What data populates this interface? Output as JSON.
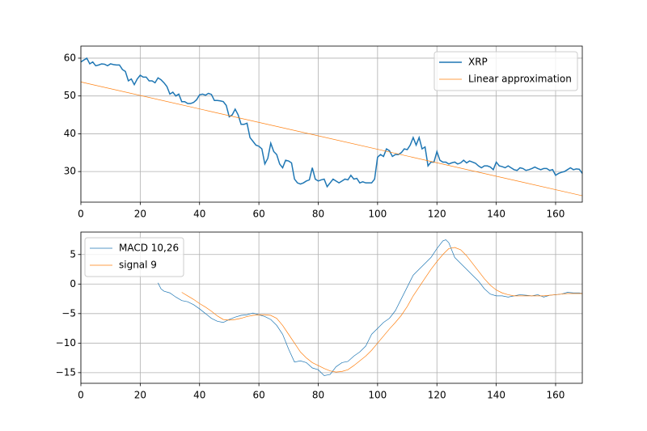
{
  "chart_data": [
    {
      "type": "line",
      "xlim": [
        0,
        169
      ],
      "ylim": [
        21.9,
        63.2
      ],
      "xticks": [
        0,
        20,
        40,
        60,
        80,
        100,
        120,
        140,
        160
      ],
      "yticks": [
        30,
        40,
        50,
        60
      ],
      "grid": true,
      "legend": "upper right",
      "series": [
        {
          "name": "XRP",
          "color": "#1f77b4",
          "width": 1.5,
          "x": [
            0,
            1,
            2,
            3,
            4,
            5,
            6,
            7,
            8,
            9,
            10,
            11,
            12,
            13,
            14,
            15,
            16,
            17,
            18,
            19,
            20,
            21,
            22,
            23,
            24,
            25,
            26,
            27,
            28,
            29,
            30,
            31,
            32,
            33,
            34,
            35,
            36,
            37,
            38,
            39,
            40,
            41,
            42,
            43,
            44,
            45,
            46,
            47,
            48,
            49,
            50,
            51,
            52,
            53,
            54,
            55,
            56,
            57,
            58,
            59,
            60,
            61,
            62,
            63,
            64,
            65,
            66,
            67,
            68,
            69,
            70,
            71,
            72,
            73,
            74,
            75,
            76,
            77,
            78,
            79,
            80,
            81,
            82,
            83,
            84,
            85,
            86,
            87,
            88,
            89,
            90,
            91,
            92,
            93,
            94,
            95,
            96,
            97,
            98,
            99,
            100,
            101,
            102,
            103,
            104,
            105,
            106,
            107,
            108,
            109,
            110,
            111,
            112,
            113,
            114,
            115,
            116,
            117,
            118,
            119,
            120,
            121,
            122,
            123,
            124,
            125,
            126,
            127,
            128,
            129,
            130,
            131,
            132,
            133,
            134,
            135,
            136,
            137,
            138,
            139,
            140,
            141,
            142,
            143,
            144,
            145,
            146,
            147,
            148,
            149,
            150,
            151,
            152,
            153,
            154,
            155,
            156,
            157,
            158,
            159,
            160,
            161,
            162,
            163,
            164,
            165,
            166,
            167,
            168,
            169
          ],
          "values": [
            59,
            59.5,
            60,
            58.5,
            59,
            58,
            58.2,
            58.5,
            58.4,
            58,
            58.5,
            58.3,
            58.2,
            58.2,
            57,
            56.5,
            54,
            54.5,
            53,
            54.5,
            55.5,
            55,
            55,
            54,
            54,
            53.5,
            54.8,
            54.3,
            53.5,
            52.5,
            50.5,
            51,
            50,
            50.5,
            48.5,
            48.5,
            48,
            48,
            48.3,
            49,
            50.3,
            50.5,
            50.2,
            50.7,
            50.4,
            48.8,
            48.8,
            48.7,
            48.5,
            47.5,
            44.5,
            45,
            46.5,
            45,
            42.5,
            42.5,
            42.8,
            39,
            38,
            37,
            36.7,
            36,
            32,
            33.5,
            37.5,
            35.3,
            34.5,
            32,
            31,
            33,
            32.8,
            32.3,
            28,
            27,
            26.7,
            27,
            27.5,
            27.8,
            31,
            28,
            27.5,
            27.8,
            28,
            26,
            27,
            28,
            27.5,
            27,
            27.5,
            28,
            27.8,
            29,
            28,
            28.2,
            27,
            27.3,
            27,
            27,
            27,
            28,
            33.8,
            34.5,
            34,
            36,
            35.5,
            34,
            34.5,
            34.5,
            35,
            36,
            35.8,
            37,
            39,
            37,
            39,
            36,
            36.5,
            31.5,
            32.5,
            32.5,
            35.3,
            33,
            32.5,
            32.5,
            32,
            32.3,
            32.5,
            32,
            32.3,
            33,
            32.3,
            32.8,
            32.5,
            32.2,
            31.5,
            31,
            31.5,
            31.5,
            31.2,
            30.5,
            32.5,
            31.5,
            31.3,
            31,
            31.5,
            31,
            30.5,
            30.3,
            31,
            30.8,
            30.3,
            30.5,
            30.8,
            31.2,
            30.8,
            30.5,
            30.8,
            30.8,
            30.3,
            30.5,
            29,
            29.5,
            29.8,
            30,
            30.5,
            31,
            30.5,
            30.7,
            30.6,
            29.5
          ]
        },
        {
          "name": "Linear approximation",
          "color": "#ff7f0e",
          "width": 0.7,
          "x": [
            0,
            169
          ],
          "values": [
            53.7,
            23.6
          ]
        }
      ]
    },
    {
      "type": "line",
      "xlim": [
        0,
        169
      ],
      "ylim": [
        -16.8,
        8.8
      ],
      "xticks": [
        0,
        20,
        40,
        60,
        80,
        100,
        120,
        140,
        160
      ],
      "yticks": [
        {
          "value": -15,
          "label": "−15"
        },
        {
          "value": -10,
          "label": "−10"
        },
        {
          "value": -5,
          "label": "−5"
        },
        0,
        5
      ],
      "grid": true,
      "legend": "upper left",
      "series": [
        {
          "name": "MACD 10,26",
          "color": "#1f77b4",
          "width": 0.7,
          "x": [
            26,
            27,
            28,
            30,
            32,
            34,
            36,
            38,
            40,
            42,
            44,
            46,
            48,
            50,
            52,
            54,
            56,
            58,
            60,
            62,
            64,
            66,
            68,
            70,
            72,
            74,
            76,
            78,
            80,
            82,
            84,
            86,
            88,
            90,
            92,
            94,
            96,
            98,
            100,
            102,
            104,
            106,
            108,
            110,
            112,
            114,
            116,
            118,
            120,
            122,
            123,
            124,
            126,
            128,
            130,
            132,
            134,
            136,
            138,
            140,
            142,
            144,
            146,
            148,
            150,
            152,
            154,
            156,
            158,
            160,
            162,
            164,
            166,
            168,
            169
          ],
          "values": [
            0.2,
            -0.8,
            -1.2,
            -1.5,
            -2.2,
            -2.8,
            -3.0,
            -3.5,
            -4.2,
            -5.0,
            -5.8,
            -6.3,
            -6.5,
            -6.0,
            -5.6,
            -5.3,
            -5.2,
            -4.9,
            -5.2,
            -5.5,
            -6.0,
            -7.0,
            -8.5,
            -11,
            -13.2,
            -13.0,
            -13.3,
            -14.2,
            -14.5,
            -15.5,
            -15.3,
            -14.0,
            -13.3,
            -13.1,
            -12.2,
            -11.5,
            -10.5,
            -8.5,
            -7.5,
            -6.5,
            -5.8,
            -4.5,
            -2.5,
            -0.5,
            1.5,
            2.5,
            3.5,
            4.5,
            6.0,
            7.3,
            7.5,
            7.0,
            4.5,
            3.5,
            2.5,
            1.5,
            0.5,
            -0.8,
            -1.7,
            -2.0,
            -2.0,
            -2.2,
            -2.0,
            -1.8,
            -1.9,
            -2.0,
            -1.8,
            -2.2,
            -1.9,
            -1.8,
            -1.7,
            -1.4,
            -1.5,
            -1.5,
            -1.6
          ]
        },
        {
          "name": "signal 9",
          "color": "#ff7f0e",
          "width": 0.7,
          "x": [
            34,
            36,
            38,
            40,
            42,
            44,
            46,
            48,
            50,
            52,
            54,
            56,
            58,
            60,
            62,
            64,
            66,
            68,
            70,
            72,
            74,
            76,
            78,
            80,
            82,
            84,
            86,
            88,
            90,
            92,
            94,
            96,
            98,
            100,
            102,
            104,
            106,
            108,
            110,
            112,
            114,
            116,
            118,
            120,
            122,
            124,
            126,
            128,
            130,
            132,
            134,
            136,
            138,
            140,
            142,
            144,
            146,
            148,
            150,
            152,
            154,
            156,
            158,
            160,
            162,
            164,
            166,
            169
          ],
          "values": [
            -1.4,
            -2.0,
            -2.6,
            -3.3,
            -3.9,
            -4.6,
            -5.4,
            -6.0,
            -6.1,
            -6.0,
            -5.8,
            -5.5,
            -5.3,
            -5.2,
            -5.2,
            -5.3,
            -5.8,
            -7.0,
            -8.5,
            -10.0,
            -11.5,
            -12.5,
            -13.3,
            -13.8,
            -14.3,
            -14.7,
            -14.9,
            -14.8,
            -14.5,
            -13.8,
            -13.0,
            -12.2,
            -11.2,
            -10.0,
            -8.8,
            -7.6,
            -6.5,
            -5.3,
            -3.8,
            -2.0,
            -0.5,
            1.0,
            2.5,
            3.8,
            5.0,
            6.0,
            6.2,
            5.8,
            4.8,
            3.5,
            2.2,
            0.9,
            -0.2,
            -1.0,
            -1.5,
            -1.8,
            -2.0,
            -2.0,
            -2.0,
            -2.0,
            -2.0,
            -2.0,
            -1.9,
            -1.8,
            -1.7,
            -1.6,
            -1.6,
            -1.6
          ]
        }
      ]
    }
  ]
}
